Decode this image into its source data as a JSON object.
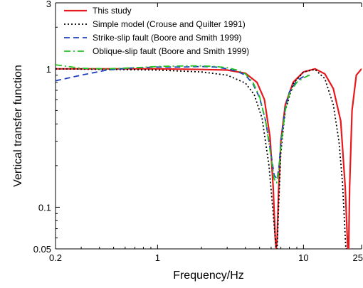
{
  "chart_data": {
    "type": "line",
    "xlabel": "Frequency/Hz",
    "ylabel": "Vertical transfer function",
    "xscale": "log",
    "yscale": "log",
    "xlim": [
      0.2,
      25
    ],
    "ylim": [
      0.05,
      3
    ],
    "x_ticks": [
      {
        "value": 0.2,
        "label": "0.2"
      },
      {
        "value": 1,
        "label": "1"
      },
      {
        "value": 10,
        "label": "10"
      },
      {
        "value": 25,
        "label": "25"
      }
    ],
    "y_ticks": [
      {
        "value": 0.05,
        "label": "0.05"
      },
      {
        "value": 0.1,
        "label": "0.1"
      },
      {
        "value": 1,
        "label": "1"
      },
      {
        "value": 3,
        "label": "3"
      }
    ],
    "legend_position": "top-left",
    "series": [
      {
        "name": "This study",
        "color": "#e8191c",
        "dash": "solid",
        "x": [
          0.2,
          0.5,
          1,
          2,
          3,
          4,
          4.8,
          5.4,
          5.9,
          6.2,
          6.4,
          6.5,
          6.6,
          6.75,
          7,
          7.5,
          8.5,
          10,
          12,
          14,
          16,
          18,
          19.3,
          20.1,
          20.4,
          20.7,
          21.5,
          23,
          25
        ],
        "y": [
          1.0,
          1.0,
          1.0,
          0.99,
          0.98,
          0.93,
          0.8,
          0.6,
          0.32,
          0.14,
          0.06,
          0.05,
          0.06,
          0.13,
          0.3,
          0.55,
          0.8,
          0.95,
          1.0,
          0.92,
          0.72,
          0.42,
          0.14,
          0.05,
          0.05,
          0.14,
          0.5,
          0.9,
          1.0
        ]
      },
      {
        "name": "Simple model (Crouse and Quilter 1991)",
        "color": "#000000",
        "dash": "dot",
        "x": [
          0.2,
          0.5,
          1,
          2,
          3,
          4,
          4.6,
          5.2,
          5.8,
          6.2,
          6.5,
          6.6,
          6.75,
          7,
          7.5,
          8.5,
          10,
          12,
          14,
          16,
          17.5,
          18.5,
          19.2,
          19.5,
          19.9
        ],
        "y": [
          1.0,
          0.99,
          0.98,
          0.95,
          0.9,
          0.79,
          0.65,
          0.44,
          0.2,
          0.09,
          0.05,
          0.05,
          0.1,
          0.25,
          0.5,
          0.78,
          0.95,
          0.99,
          0.85,
          0.55,
          0.3,
          0.15,
          0.07,
          0.05,
          0.05
        ]
      },
      {
        "name": "Strike-slip fault (Boore and Smith 1999)",
        "color": "#1f3fbf",
        "dash": "dash",
        "x": [
          0.2,
          0.3,
          0.45,
          0.7,
          1,
          1.5,
          2,
          2.5,
          3,
          3.5,
          4,
          4.5,
          5,
          5.5,
          6,
          6.3,
          6.6,
          6.8,
          7,
          7.5,
          8,
          9,
          10,
          11
        ],
        "y": [
          0.82,
          0.9,
          0.98,
          1.02,
          1.03,
          1.03,
          1.04,
          1.03,
          1.0,
          0.96,
          0.9,
          0.78,
          0.62,
          0.42,
          0.24,
          0.17,
          0.16,
          0.2,
          0.3,
          0.52,
          0.68,
          0.82,
          0.88,
          0.9
        ]
      },
      {
        "name": "Oblique-slip fault (Boore and Smith 1999)",
        "color": "#22c422",
        "dash": "dashdot",
        "x": [
          0.2,
          0.3,
          0.45,
          0.7,
          1,
          1.5,
          2,
          2.5,
          3,
          3.5,
          4,
          4.5,
          5,
          5.5,
          6,
          6.3,
          6.55,
          6.75,
          7,
          7.5,
          8,
          9,
          10,
          11
        ],
        "y": [
          1.07,
          1.01,
          1.0,
          1.02,
          1.04,
          1.05,
          1.05,
          1.04,
          1.02,
          0.98,
          0.92,
          0.8,
          0.63,
          0.42,
          0.23,
          0.16,
          0.15,
          0.18,
          0.28,
          0.5,
          0.66,
          0.8,
          0.86,
          0.9
        ]
      }
    ]
  }
}
